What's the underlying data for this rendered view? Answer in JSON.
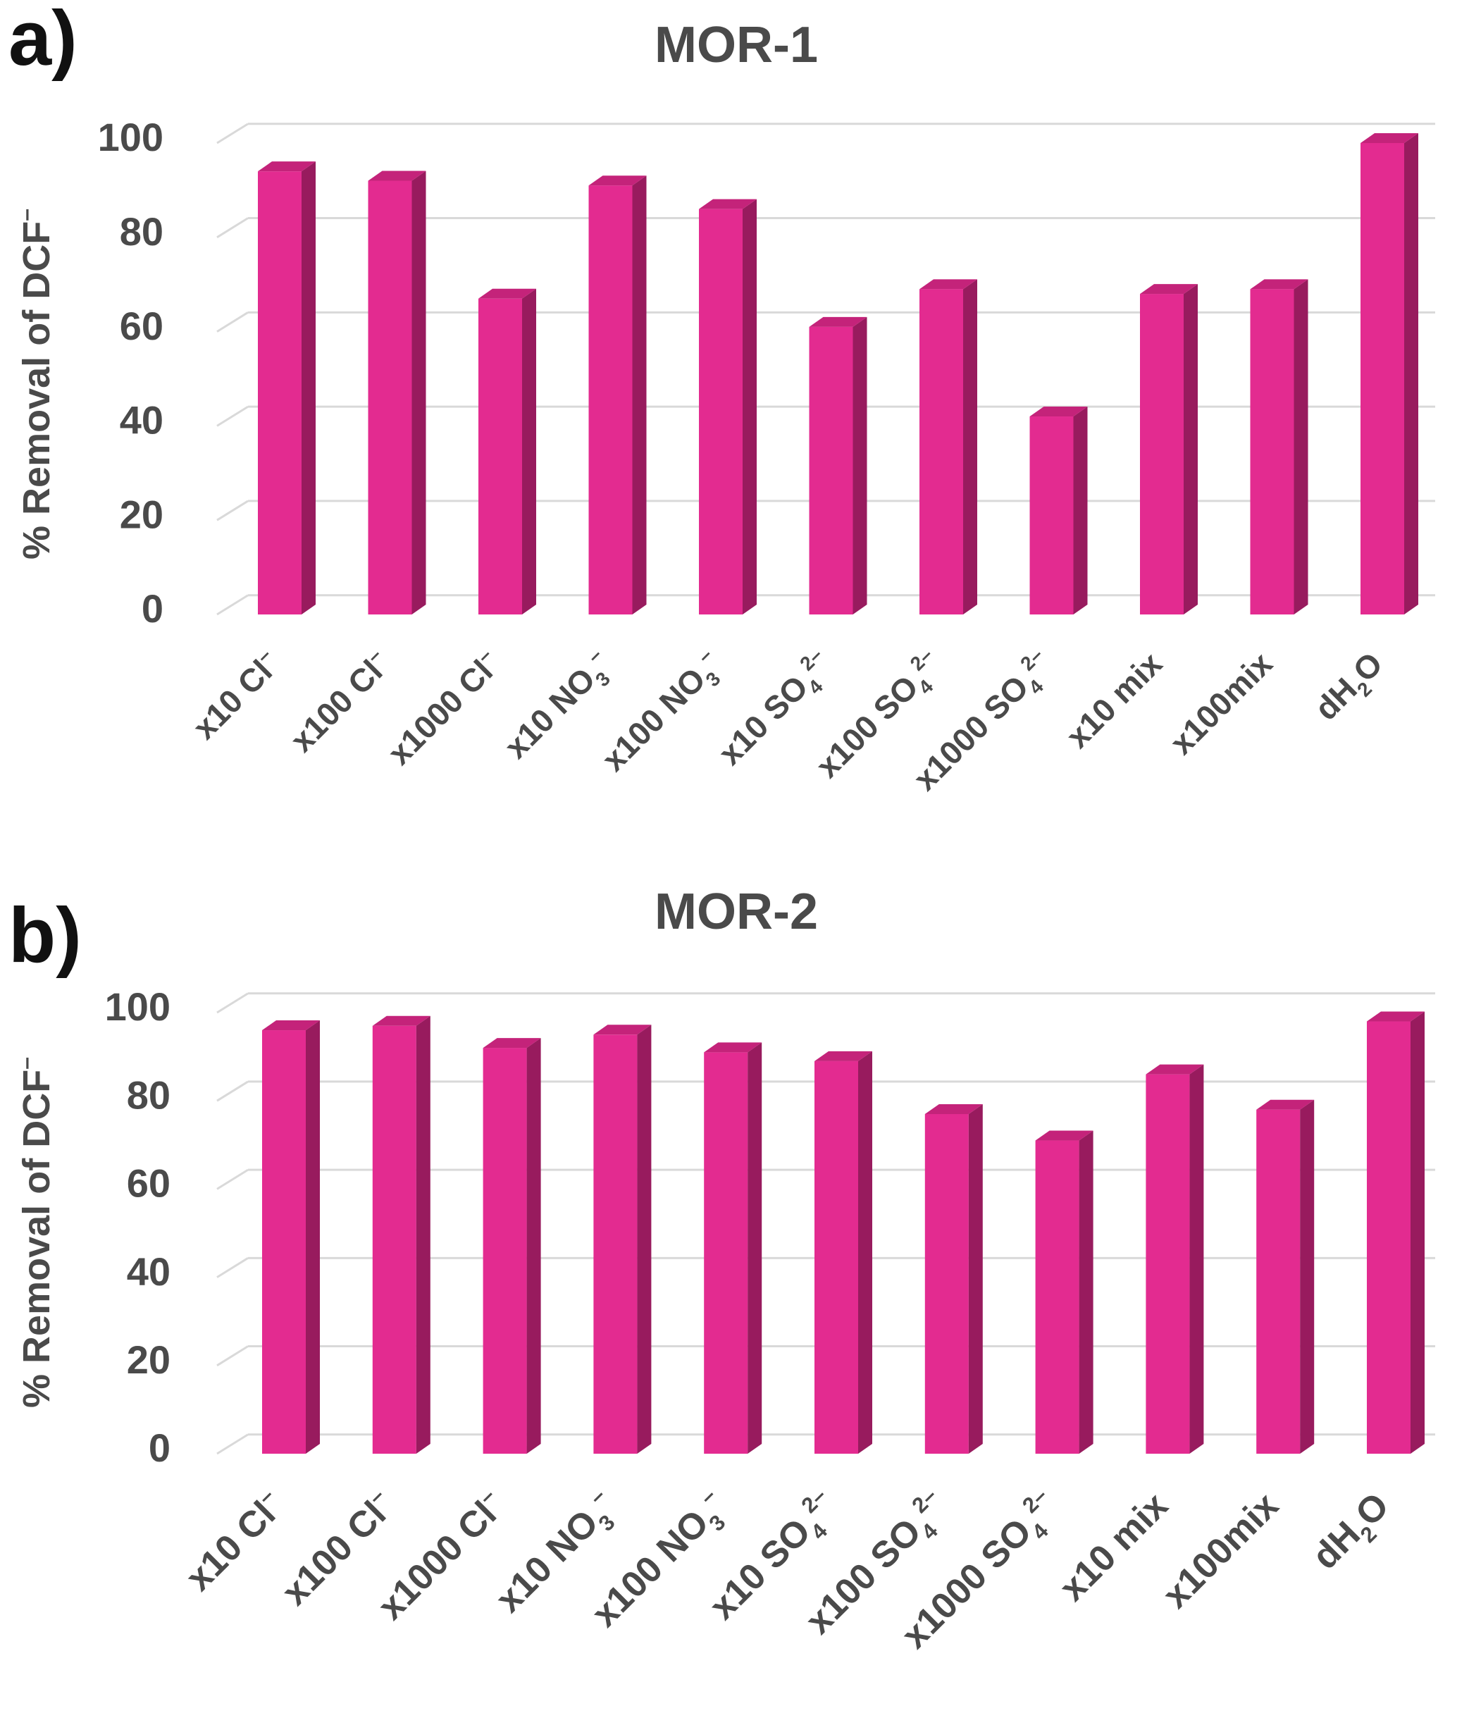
{
  "colors": {
    "bar_front": "#e32b90",
    "bar_side": "#981b5e",
    "bar_top": "#c4237a",
    "grid": "#d9d9d9",
    "text": "#4a4a4a",
    "panel_label": "#111111"
  },
  "chart_data": [
    {
      "type": "bar",
      "panel_label": "a)",
      "title": "MOR-1",
      "ylabel": "% Removal of DCF⁻",
      "xlabel": "",
      "ylim": [
        0,
        100
      ],
      "yticks": [
        "0",
        "20",
        "40",
        "60",
        "80",
        "100"
      ],
      "grid": true,
      "categories": [
        "x10 Cl⁻",
        "x100 Cl⁻",
        "x1000 Cl⁻",
        "x10 NO₃⁻",
        "x100 NO₃⁻",
        "x10 SO₄²⁻",
        "x100 SO₄²⁻",
        "x1000 SO₄²⁻",
        "x10 mix",
        "x100mix",
        "dH₂O"
      ],
      "series": [
        {
          "name": "MOR-1",
          "values": [
            94,
            92,
            67,
            91,
            86,
            61,
            69,
            42,
            68,
            69,
            100
          ]
        }
      ]
    },
    {
      "type": "bar",
      "panel_label": "b)",
      "title": "MOR-2",
      "ylabel": "% Removal of DCF⁻",
      "xlabel": "",
      "ylim": [
        0,
        100
      ],
      "yticks": [
        "0",
        "20",
        "40",
        "60",
        "80",
        "100"
      ],
      "grid": true,
      "categories": [
        "x10 Cl⁻",
        "x100 Cl⁻",
        "x1000 Cl⁻",
        "x10 NO₃⁻",
        "x100 NO₃⁻",
        "x10 SO₄²⁻",
        "x100 SO₄²⁻",
        "x1000 SO₄²⁻",
        "x10 mix",
        "x100mix",
        "dH₂O"
      ],
      "series": [
        {
          "name": "MOR-2",
          "values": [
            96,
            97,
            92,
            95,
            91,
            89,
            77,
            71,
            86,
            78,
            98
          ]
        }
      ]
    }
  ]
}
